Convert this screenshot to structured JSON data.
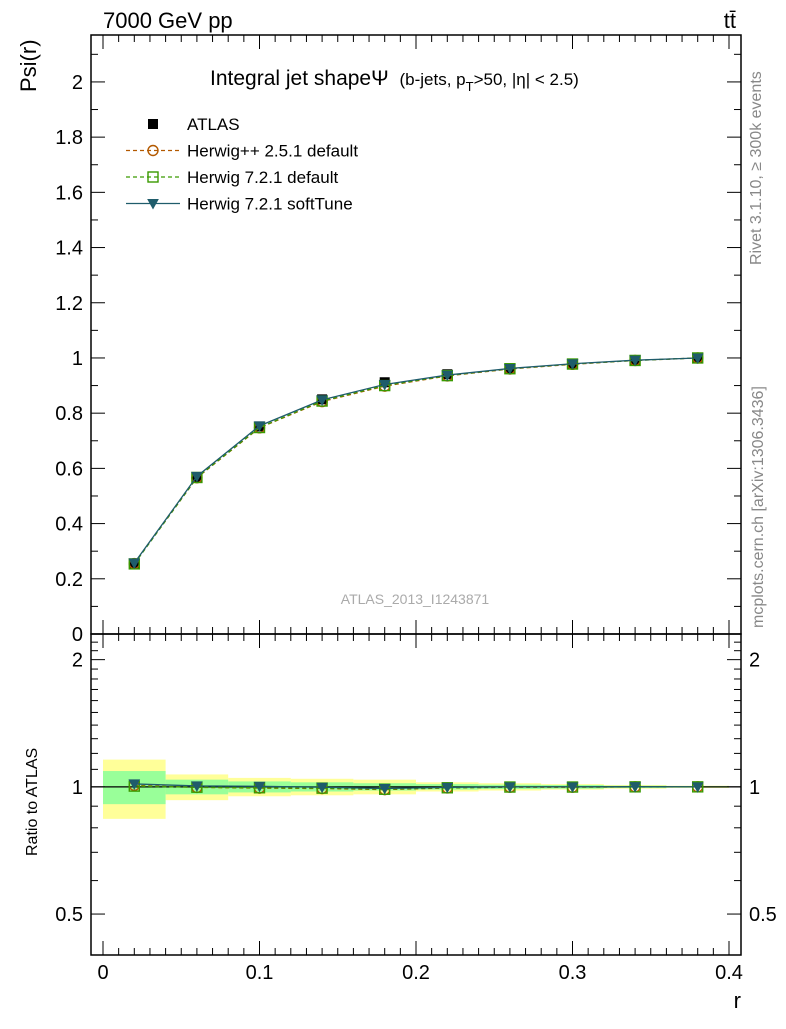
{
  "header": {
    "left": "7000 GeV pp",
    "right": "tt̄"
  },
  "side_labels": {
    "rivet": "Rivet 3.1.10, ≥ 300k events",
    "mcplots": "mcplots.cern.ch [arXiv:1306.3436]"
  },
  "watermark": "ATLAS_2013_I1243871",
  "chart_data": {
    "type": "line",
    "title_main": "Integral jet shapeΨ",
    "title_sub_prefix": "(b-jets, p",
    "title_sub_subscript": "T",
    "title_sub_suffix": ">50, |η| < 2.5)",
    "xlabel": "r",
    "ylabel": "Psi(r)",
    "ratio_ylabel": "Ratio to ATLAS",
    "xlim": [
      0,
      0.4
    ],
    "ylim": [
      0,
      2.17
    ],
    "ratio_ylim": [
      0.4,
      2.3
    ],
    "x_ticks": [
      0,
      0.1,
      0.2,
      0.3,
      0.4
    ],
    "x_tick_labels": [
      "0",
      "0.1",
      "0.2",
      "0.3",
      "0.4"
    ],
    "y_ticks": [
      0,
      0.2,
      0.4,
      0.6,
      0.8,
      1,
      1.2,
      1.4,
      1.6,
      1.8,
      2
    ],
    "y_tick_labels": [
      "0",
      "0.2",
      "0.4",
      "0.6",
      "0.8",
      "1",
      "1.2",
      "1.4",
      "1.6",
      "1.8",
      "2"
    ],
    "ratio_ticks": [
      0.5,
      1,
      2
    ],
    "ratio_tick_labels": [
      "0.5",
      "1",
      "2"
    ],
    "legend_position": "top-left",
    "x": [
      0.02,
      0.06,
      0.1,
      0.14,
      0.18,
      0.22,
      0.26,
      0.3,
      0.34,
      0.38
    ],
    "bin_edges": [
      0,
      0.04,
      0.08,
      0.12,
      0.16,
      0.2,
      0.24,
      0.28,
      0.32,
      0.36,
      0.4
    ],
    "data": {
      "name": "ATLAS",
      "values": [
        0.253,
        0.568,
        0.752,
        0.85,
        0.912,
        0.941,
        0.962,
        0.979,
        0.991,
        1.0
      ],
      "ratio_band_inner": [
        0.09,
        0.04,
        0.03,
        0.025,
        0.02,
        0.015,
        0.012,
        0.01,
        0.006,
        0.004
      ],
      "ratio_band_outer": [
        0.16,
        0.07,
        0.05,
        0.045,
        0.04,
        0.025,
        0.02,
        0.015,
        0.01,
        0.006
      ]
    },
    "series": [
      {
        "name": "Herwig++ 2.5.1 default",
        "color": "#b35900",
        "marker": "circle",
        "dash": "dashed",
        "values": [
          0.255,
          0.566,
          0.747,
          0.842,
          0.898,
          0.935,
          0.96,
          0.977,
          0.991,
          1.0
        ],
        "ratio": [
          1.008,
          0.997,
          0.993,
          0.991,
          0.985,
          0.994,
          0.998,
          0.998,
          1.0,
          1.0
        ]
      },
      {
        "name": "Herwig 7.2.1 default",
        "color": "#3a9a00",
        "marker": "square",
        "dash": "dashed",
        "values": [
          0.254,
          0.567,
          0.748,
          0.844,
          0.9,
          0.936,
          0.961,
          0.978,
          0.991,
          1.0
        ],
        "ratio": [
          1.004,
          0.998,
          0.995,
          0.993,
          0.987,
          0.995,
          0.999,
          0.999,
          1.0,
          1.0
        ]
      },
      {
        "name": "Herwig 7.2.1 softTune",
        "color": "#1f5c6b",
        "marker": "triangle-down",
        "dash": "solid",
        "values": [
          0.257,
          0.571,
          0.754,
          0.848,
          0.904,
          0.938,
          0.962,
          0.979,
          0.992,
          1.0
        ],
        "ratio": [
          1.016,
          1.005,
          1.003,
          0.998,
          0.991,
          0.997,
          1.0,
          1.0,
          1.001,
          1.0
        ]
      }
    ]
  }
}
